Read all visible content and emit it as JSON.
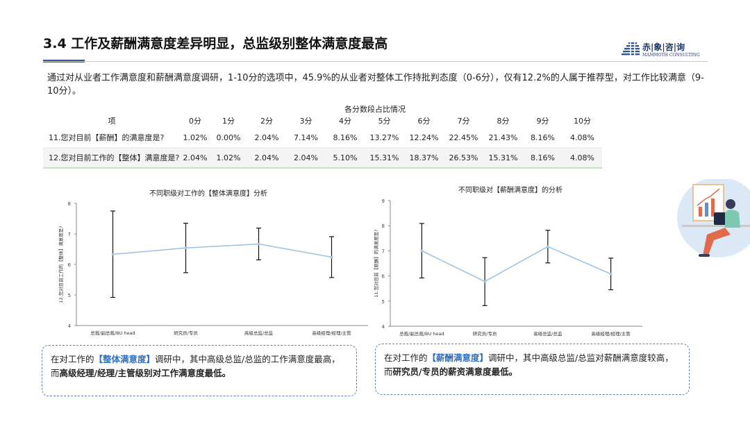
{
  "header": {
    "title": "3.4 工作及薪酬满意度差异明显，总监级别整体满意度最高",
    "logo_text": "赤|象|咨|询",
    "logo_subtext": "MAMMOTH CONSULTING"
  },
  "intro": "通过对从业者工作满意度和薪酬满意度调研，1-10分的选项中，45.9%的从业者对整体工作持批判态度（0-6分），仅有12.2%的人属于推荐型，对工作比较满意（9-10分）。",
  "table": {
    "title": "各分数段占比情况",
    "headers": [
      "项",
      "0分",
      "1分",
      "2分",
      "3分",
      "4分",
      "5分",
      "6分",
      "7分",
      "8分",
      "9分",
      "10分"
    ],
    "rows": [
      [
        "11.您对目前【薪酬】的满意度是?",
        "1.02%",
        "0.00%",
        "2.04%",
        "7.14%",
        "8.16%",
        "13.27%",
        "12.24%",
        "22.45%",
        "21.43%",
        "8.16%",
        "4.08%"
      ],
      [
        "12.您对目前工作的【整体】满意度是?",
        "2.04%",
        "1.02%",
        "2.04%",
        "2.04%",
        "5.10%",
        "15.31%",
        "18.37%",
        "26.53%",
        "15.31%",
        "8.16%",
        "4.08%"
      ]
    ]
  },
  "chart_data": [
    {
      "type": "line",
      "title": "不同职级对工作的【整体满意度】分析",
      "ylabel": "12.您对目前工作的【整体】满意度是?",
      "xlabel": "",
      "categories": [
        "总裁/副总裁/BU head",
        "研究员/专员",
        "高级总监/总监",
        "高级经理/经理/主管"
      ],
      "series": [
        {
          "values": [
            6.33,
            6.54,
            6.67,
            6.24
          ]
        }
      ],
      "error_low": [
        4.92,
        5.73,
        6.15,
        5.57
      ],
      "error_high": [
        7.75,
        7.35,
        7.19,
        6.91
      ],
      "ylim": [
        4,
        8
      ],
      "yticks": [
        "4",
        "5",
        "6",
        "7",
        "8"
      ],
      "color": "#9dc3e6",
      "error_color": "#111111"
    },
    {
      "type": "line",
      "title": "不同职级对【薪酬满意度】的分析",
      "ylabel": "11.您对目前【薪酬】的满意度是?",
      "xlabel": "",
      "categories": [
        "总裁/副总裁/BU head",
        "研究员/专员",
        "高级总监/总监",
        "高级经理/经理/主管"
      ],
      "series": [
        {
          "values": [
            7.0,
            5.78,
            7.17,
            6.08
          ]
        }
      ],
      "error_low": [
        5.92,
        4.82,
        6.52,
        5.45
      ],
      "error_high": [
        8.09,
        6.73,
        7.82,
        6.71
      ],
      "ylim": [
        4,
        9
      ],
      "yticks": [
        "4",
        "5",
        "6",
        "7",
        "8",
        "9"
      ],
      "color": "#9dc3e6",
      "error_color": "#111111"
    }
  ],
  "notes": {
    "left": {
      "pre": "在对工作的",
      "hl": "【整体满意度】",
      "mid": "调研中，其中高级总监/总监的工作满意度最高，而",
      "bold": "高级经理/经理/主管级别对工作满意度最低。"
    },
    "right": {
      "pre": "在对工作的",
      "hl": "【薪酬满意度】",
      "mid": "调研中，其中高级总监/总监对薪酬满意度较高，而",
      "bold": "研究员/专员的薪资满意度最低。"
    }
  },
  "icons": {
    "logo": "mammoth-logo-icon",
    "illustration": "analyst-illustration-icon"
  }
}
